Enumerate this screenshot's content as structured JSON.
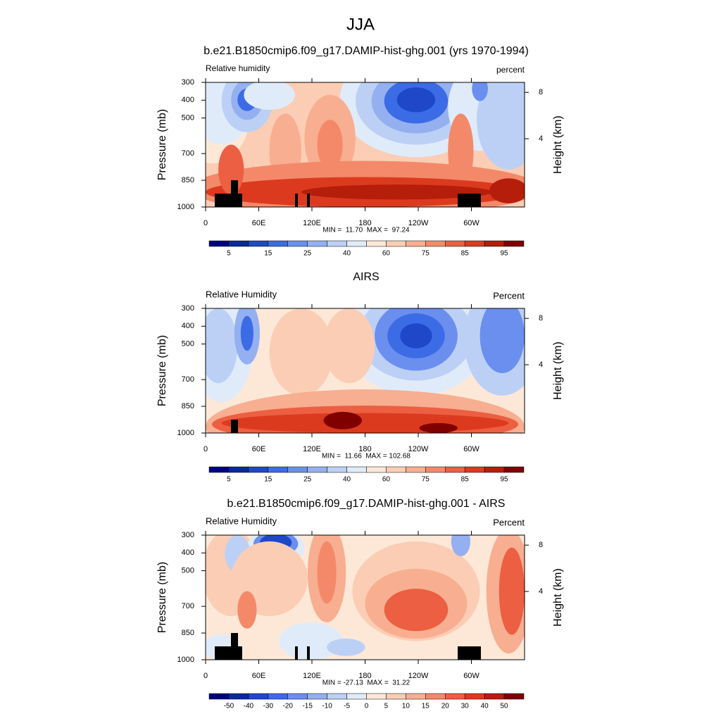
{
  "title": "JJA",
  "colors": [
    "#000080",
    "#0a2a9a",
    "#1e48c8",
    "#3c6be6",
    "#6a8fee",
    "#94b0f0",
    "#bcd0f6",
    "#e0ebfa",
    "#fde8d8",
    "#fbcdb4",
    "#f8ae90",
    "#f4896a",
    "#ec5f42",
    "#dc3a1e",
    "#b41e0a",
    "#800000"
  ],
  "panels": [
    {
      "title": "b.e21.B1850cmip6.f09_g17.DAMIP-hist-ghg.001 (yrs 1970-1994)",
      "left_label": "Relative humidity",
      "right_label": "percent",
      "ylabel": "Pressure (mb)",
      "y2label": "Height (km)",
      "ylim": [
        1000,
        300
      ],
      "yticks": [
        300,
        400,
        500,
        700,
        850,
        1000
      ],
      "y2ticks": [
        4,
        8
      ],
      "xlim": [
        0,
        360
      ],
      "xticks": [
        0,
        {
          "value": 60,
          "label": "60E"
        },
        {
          "value": 120,
          "label": "120E"
        },
        180,
        {
          "value": 240,
          "label": "120W"
        },
        {
          "value": 300,
          "label": "60W"
        }
      ],
      "stats": "MIN =  11.70  MAX =  97.24",
      "colorbar_labels": [
        5,
        15,
        25,
        40,
        60,
        75,
        85,
        95
      ]
    },
    {
      "title": "AIRS",
      "left_label": "Relative Humidity",
      "right_label": "Percent",
      "ylabel": "Pressure (mb)",
      "y2label": "Height (km)",
      "ylim": [
        1000,
        300
      ],
      "yticks": [
        300,
        400,
        500,
        700,
        850,
        1000
      ],
      "y2ticks": [
        4,
        8
      ],
      "xlim": [
        0,
        360
      ],
      "xticks": [
        0,
        {
          "value": 60,
          "label": "60E"
        },
        {
          "value": 120,
          "label": "120E"
        },
        180,
        {
          "value": 240,
          "label": "120W"
        },
        {
          "value": 300,
          "label": "60W"
        }
      ],
      "stats": "MIN =  11.66  MAX = 102.68",
      "colorbar_labels": [
        5,
        15,
        25,
        40,
        60,
        75,
        85,
        95
      ]
    },
    {
      "title": "b.e21.B1850cmip6.f09_g17.DAMIP-hist-ghg.001 - AIRS",
      "left_label": "Relative Humidity",
      "right_label": "Percent",
      "ylabel": "Pressure (mb)",
      "y2label": "Height (km)",
      "ylim": [
        1000,
        300
      ],
      "yticks": [
        300,
        400,
        500,
        700,
        850,
        1000
      ],
      "y2ticks": [
        4,
        8
      ],
      "xlim": [
        0,
        360
      ],
      "xticks": [
        0,
        {
          "value": 60,
          "label": "60E"
        },
        {
          "value": 120,
          "label": "120E"
        },
        180,
        {
          "value": 240,
          "label": "120W"
        },
        {
          "value": 300,
          "label": "60W"
        }
      ],
      "stats": "MIN = -27.13  MAX =  31.22",
      "colorbar_labels": [
        -50,
        -40,
        -30,
        -20,
        -15,
        -10,
        -5,
        0,
        5,
        10,
        15,
        20,
        30,
        40,
        50
      ]
    }
  ]
}
